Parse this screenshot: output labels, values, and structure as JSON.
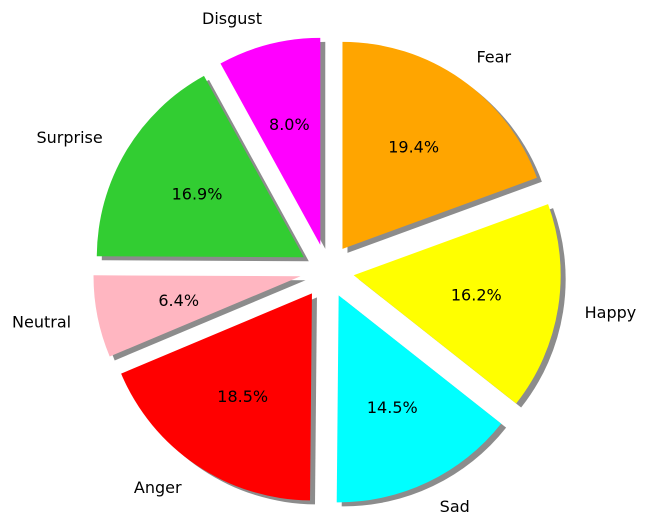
{
  "chart_data": {
    "type": "pie",
    "title": "",
    "categories": [
      "Fear",
      "Happy",
      "Sad",
      "Anger",
      "Neutral",
      "Surprise",
      "Disgust"
    ],
    "values": [
      19.4,
      16.2,
      14.5,
      18.5,
      6.4,
      16.9,
      8.0
    ],
    "value_labels": [
      "19.4%",
      "16.2%",
      "14.5%",
      "18.5%",
      "6.4%",
      "16.9%",
      "8.0%"
    ],
    "colors": [
      "#FFA500",
      "#FFFF00",
      "#00FFFF",
      "#FF0000",
      "#FFB6C1",
      "#32CD32",
      "#FF00FF"
    ],
    "start_angle_deg": 90,
    "direction": "clockwise",
    "exploded": true,
    "shadow": true,
    "legend": "none"
  }
}
